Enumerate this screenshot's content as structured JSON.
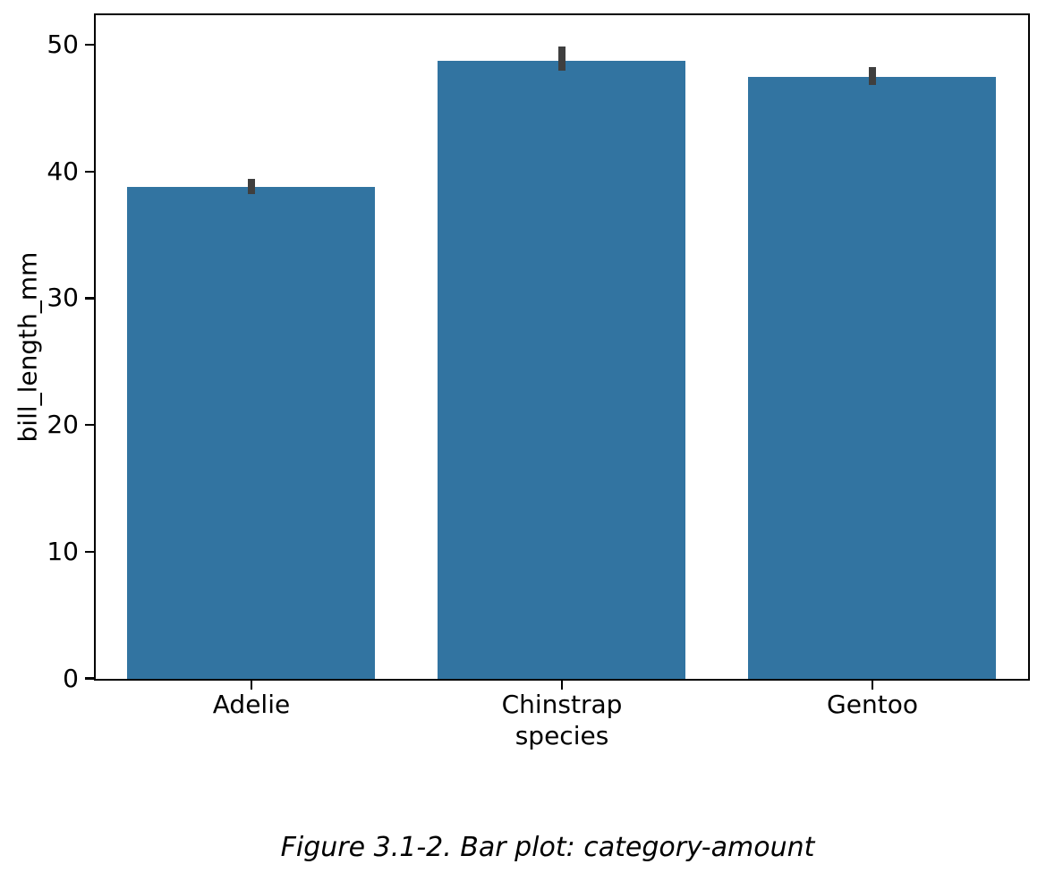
{
  "chart_data": {
    "type": "bar",
    "title": "",
    "xlabel": "species",
    "ylabel": "bill_length_mm",
    "caption": "Figure 3.1-2. Bar plot: category-amount",
    "categories": [
      "Adelie",
      "Chinstrap",
      "Gentoo"
    ],
    "values": [
      38.8,
      48.8,
      47.5
    ],
    "error_bars": [
      {
        "low": 38.2,
        "high": 39.4
      },
      {
        "low": 47.9,
        "high": 49.8
      },
      {
        "low": 46.8,
        "high": 48.2
      }
    ],
    "y_ticks": [
      0,
      10,
      20,
      30,
      40,
      50
    ],
    "ylim": [
      0,
      52.3
    ],
    "bar_width_fraction": 0.8,
    "bar_color": "#3274a1",
    "error_bar_color": "#3f3f3f",
    "axis_color": "#000000",
    "background_color": "#ffffff",
    "grid": false,
    "legend_position": "none"
  }
}
